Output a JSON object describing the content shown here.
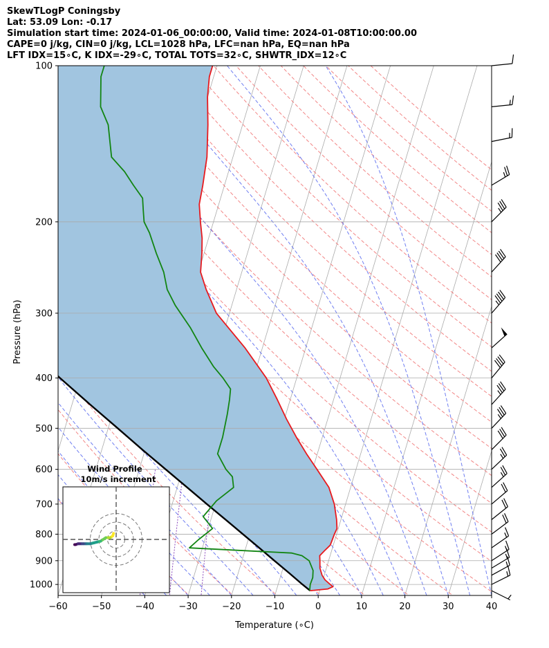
{
  "header": {
    "line1": "SkewTLogP Coningsby",
    "line2": "Lat: 53.09   Lon: -0.17",
    "line3": "Simulation start time: 2024-01-06_00:00:00, Valid time: 2024-01-08T10:00:00.00",
    "line4": "CAPE=0 j/kg, CIN=0 j/kg, LCL=1028 hPa, LFC=nan hPa, EQ=nan hPa",
    "line5": "LFT IDX=15∘C, K IDX=-29∘C, TOTAL TOTS=32∘C, SHWTR_IDX=12∘C"
  },
  "chart_data": {
    "type": "line",
    "subtype": "skew-T log-P",
    "xlabel": "Temperature (∘C)",
    "ylabel": "Pressure (hPa)",
    "xlim": [
      -60,
      40
    ],
    "ylim": [
      1050,
      100
    ],
    "y_scale": "log",
    "x_ticks": [
      "−60",
      "−50",
      "−40",
      "−30",
      "−20",
      "−10",
      "0",
      "10",
      "20",
      "30",
      "40"
    ],
    "y_ticks": [
      "100",
      "200",
      "300",
      "400",
      "500",
      "600",
      "700",
      "800",
      "900",
      "1000"
    ],
    "grid": true,
    "colors": {
      "temperature": "#e8191d",
      "dewpoint": "#128512",
      "parcel": "#000000",
      "cape_fill": "#a1c5e0",
      "dry_adiabats": "#f07070",
      "moist_adiabats": "#5566ee",
      "mixing_ratio": "#8844bb",
      "isotherms": "#aaaaaa"
    },
    "series": [
      {
        "name": "Temperature",
        "points": [
          [
            1028,
            -2.2
          ],
          [
            1020,
            1.8
          ],
          [
            1010,
            2.8
          ],
          [
            1000,
            2.0
          ],
          [
            980,
            0.5
          ],
          [
            960,
            -0.5
          ],
          [
            930,
            -1.5
          ],
          [
            900,
            -2.0
          ],
          [
            880,
            -2.4
          ],
          [
            860,
            -1.6
          ],
          [
            840,
            -0.7
          ],
          [
            820,
            -0.6
          ],
          [
            800,
            -0.5
          ],
          [
            780,
            -0.3
          ],
          [
            750,
            -1.0
          ],
          [
            700,
            -2.6
          ],
          [
            650,
            -5.0
          ],
          [
            600,
            -9.0
          ],
          [
            560,
            -12.5
          ],
          [
            520,
            -16.0
          ],
          [
            480,
            -19.5
          ],
          [
            440,
            -23.0
          ],
          [
            400,
            -27.0
          ],
          [
            350,
            -34.0
          ],
          [
            300,
            -43.0
          ],
          [
            270,
            -47.0
          ],
          [
            250,
            -49.5
          ],
          [
            230,
            -50.5
          ],
          [
            215,
            -51.5
          ],
          [
            200,
            -53.0
          ],
          [
            185,
            -54.5
          ],
          [
            170,
            -55.0
          ],
          [
            150,
            -56.0
          ],
          [
            130,
            -58.0
          ],
          [
            115,
            -60.0
          ],
          [
            105,
            -61.0
          ],
          [
            100,
            -61.0
          ]
        ]
      },
      {
        "name": "Dewpoint",
        "points": [
          [
            1028,
            -2.3
          ],
          [
            1000,
            -2.6
          ],
          [
            970,
            -2.5
          ],
          [
            940,
            -2.9
          ],
          [
            900,
            -4.5
          ],
          [
            880,
            -6.5
          ],
          [
            870,
            -9.0
          ],
          [
            850,
            -33.0
          ],
          [
            820,
            -31.5
          ],
          [
            780,
            -29.0
          ],
          [
            740,
            -32.0
          ],
          [
            690,
            -30.0
          ],
          [
            650,
            -27.0
          ],
          [
            620,
            -28.0
          ],
          [
            600,
            -30.0
          ],
          [
            560,
            -33.0
          ],
          [
            520,
            -33.0
          ],
          [
            470,
            -33.5
          ],
          [
            440,
            -34.0
          ],
          [
            420,
            -34.5
          ],
          [
            400,
            -37.0
          ],
          [
            380,
            -40.0
          ],
          [
            350,
            -44.0
          ],
          [
            320,
            -48.0
          ],
          [
            290,
            -53.0
          ],
          [
            270,
            -56.0
          ],
          [
            250,
            -58.0
          ],
          [
            230,
            -61.0
          ],
          [
            210,
            -64.0
          ],
          [
            200,
            -66.0
          ],
          [
            190,
            -67.0
          ],
          [
            180,
            -68.0
          ],
          [
            170,
            -71.0
          ],
          [
            160,
            -74.0
          ],
          [
            150,
            -78.0
          ],
          [
            130,
            -81.0
          ],
          [
            120,
            -84.0
          ],
          [
            105,
            -86.0
          ],
          [
            100,
            -86.0
          ]
        ]
      },
      {
        "name": "Parcel profile",
        "points": [
          [
            1028,
            -2.2
          ],
          [
            1000,
            -4.4
          ],
          [
            950,
            -8.3
          ],
          [
            900,
            -12.5
          ],
          [
            850,
            -16.9
          ],
          [
            800,
            -21.6
          ],
          [
            750,
            -26.6
          ],
          [
            700,
            -32.0
          ],
          [
            650,
            -37.7
          ],
          [
            600,
            -43.9
          ],
          [
            550,
            -50.6
          ],
          [
            500,
            -57.8
          ],
          [
            450,
            -65.8
          ],
          [
            400,
            -74.6
          ],
          [
            350,
            -84.3
          ],
          [
            300,
            -95.3
          ],
          [
            250,
            -108.0
          ],
          [
            200,
            -123.0
          ],
          [
            150,
            -142.0
          ],
          [
            100,
            -168.0
          ]
        ]
      }
    ],
    "wind_barbs": {
      "pressure_hpa": [
        1028,
        1000,
        960,
        930,
        900,
        850,
        800,
        750,
        700,
        650,
        600,
        550,
        500,
        450,
        400,
        350,
        300,
        250,
        200,
        170,
        140,
        120,
        100
      ],
      "speed_kt": [
        5,
        15,
        15,
        15,
        15,
        15,
        20,
        20,
        20,
        25,
        25,
        30,
        35,
        35,
        40,
        50,
        45,
        40,
        35,
        25,
        15,
        15,
        10
      ],
      "barb_tilt": [
        -0.5,
        0.5,
        0.55,
        0.6,
        0.65,
        0.7,
        0.75,
        0.8,
        0.85,
        0.9,
        0.95,
        1.0,
        1.05,
        1.1,
        1.2,
        0.9,
        1.15,
        1.1,
        1.0,
        0.6,
        0.2,
        0.1,
        0.1
      ]
    },
    "inset": {
      "title_line1": "Wind Profile",
      "title_line2": "10m/s increment",
      "rings_ms": [
        10,
        20,
        30
      ],
      "hodograph_uv": [
        [
          -3,
          7
        ],
        [
          -4,
          4
        ],
        [
          -7,
          2
        ],
        [
          -10,
          2
        ],
        [
          -12,
          2
        ],
        [
          -15,
          0
        ],
        [
          -18,
          -2
        ],
        [
          -22,
          -3
        ],
        [
          -26,
          -4
        ],
        [
          -30,
          -5
        ],
        [
          -34,
          -5
        ],
        [
          -36,
          -5
        ],
        [
          -38,
          -5
        ],
        [
          -40,
          -5
        ],
        [
          -42,
          -5
        ],
        [
          -44,
          -5
        ],
        [
          -47,
          -6
        ],
        [
          -48,
          -6
        ]
      ],
      "colormap": "viridis"
    }
  }
}
